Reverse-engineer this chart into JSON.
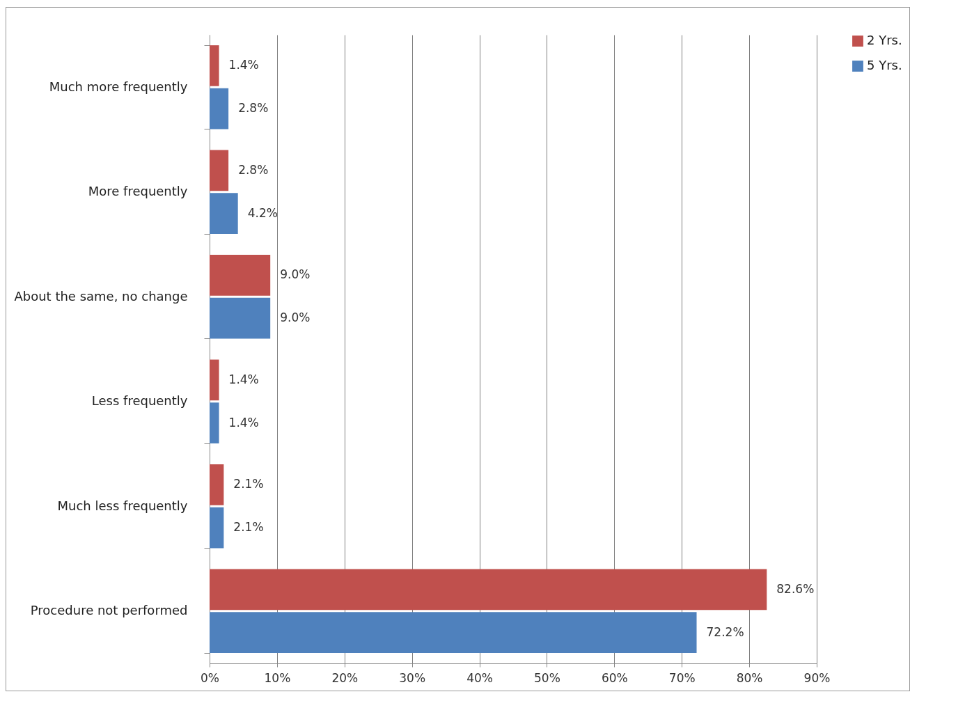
{
  "chart_data": {
    "type": "bar",
    "orientation": "horizontal",
    "categories": [
      "Much more frequently",
      "More frequently",
      "About the same, no change",
      "Less frequently",
      "Much less frequently",
      "Procedure not performed"
    ],
    "series": [
      {
        "name": "2 Yrs.",
        "color": "#c0504d",
        "values": [
          1.4,
          2.8,
          9.0,
          1.4,
          2.1,
          82.6
        ],
        "value_labels": [
          "1.4%",
          "2.8%",
          "9.0%",
          "1.4%",
          "2.1%",
          "82.6%"
        ]
      },
      {
        "name": "5 Yrs.",
        "color": "#4f81bd",
        "values": [
          2.8,
          4.2,
          9.0,
          1.4,
          2.1,
          72.2
        ],
        "value_labels": [
          "2.8%",
          "4.2%",
          "9.0%",
          "1.4%",
          "2.1%",
          "72.2%"
        ]
      }
    ],
    "xlim": [
      0,
      90
    ],
    "xticks": [
      {
        "value": 0,
        "label": "0%"
      },
      {
        "value": 10,
        "label": "10%"
      },
      {
        "value": 20,
        "label": "20%"
      },
      {
        "value": 30,
        "label": "30%"
      },
      {
        "value": 40,
        "label": "40%"
      },
      {
        "value": 50,
        "label": "50%"
      },
      {
        "value": 60,
        "label": "60%"
      },
      {
        "value": 70,
        "label": "70%"
      },
      {
        "value": 80,
        "label": "80%"
      },
      {
        "value": 90,
        "label": "90%"
      }
    ],
    "grid": "x",
    "legend": "right"
  }
}
